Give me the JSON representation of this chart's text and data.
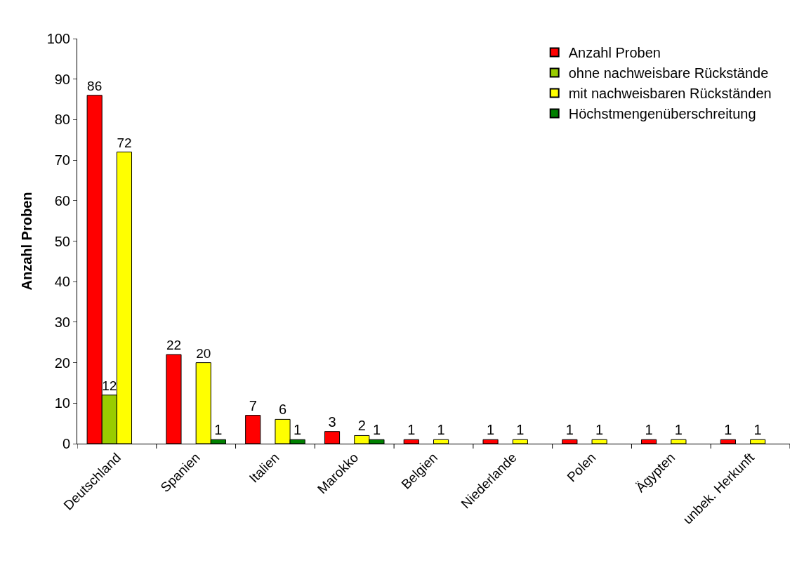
{
  "chart_data": {
    "type": "bar",
    "ylabel": "Anzahl Proben",
    "categories": [
      "Deutschland",
      "Spanien",
      "Italien",
      "Marokko",
      "Belgien",
      "Niederlande",
      "Polen",
      "Ägypten",
      "unbek. Herkunft"
    ],
    "series": [
      {
        "name": "Anzahl Proben",
        "color": "#ff0000",
        "values": [
          86,
          22,
          7,
          3,
          1,
          1,
          1,
          1,
          1
        ]
      },
      {
        "name": "ohne nachweisbare Rückstände",
        "color": "#99cc00",
        "values": [
          12,
          null,
          null,
          null,
          null,
          null,
          null,
          null,
          null
        ]
      },
      {
        "name": "mit nachweisbaren Rückständen",
        "color": "#ffff00",
        "values": [
          72,
          20,
          6,
          2,
          1,
          1,
          1,
          1,
          1
        ]
      },
      {
        "name": "Höchstmengenüberschreitung",
        "color": "#008000",
        "values": [
          null,
          1,
          1,
          1,
          null,
          null,
          null,
          null,
          null
        ]
      }
    ],
    "ylim": [
      0,
      100
    ],
    "yticks": [
      0,
      10,
      20,
      30,
      40,
      50,
      60,
      70,
      80,
      90,
      100
    ],
    "data_labels": true,
    "legend": "top right"
  }
}
